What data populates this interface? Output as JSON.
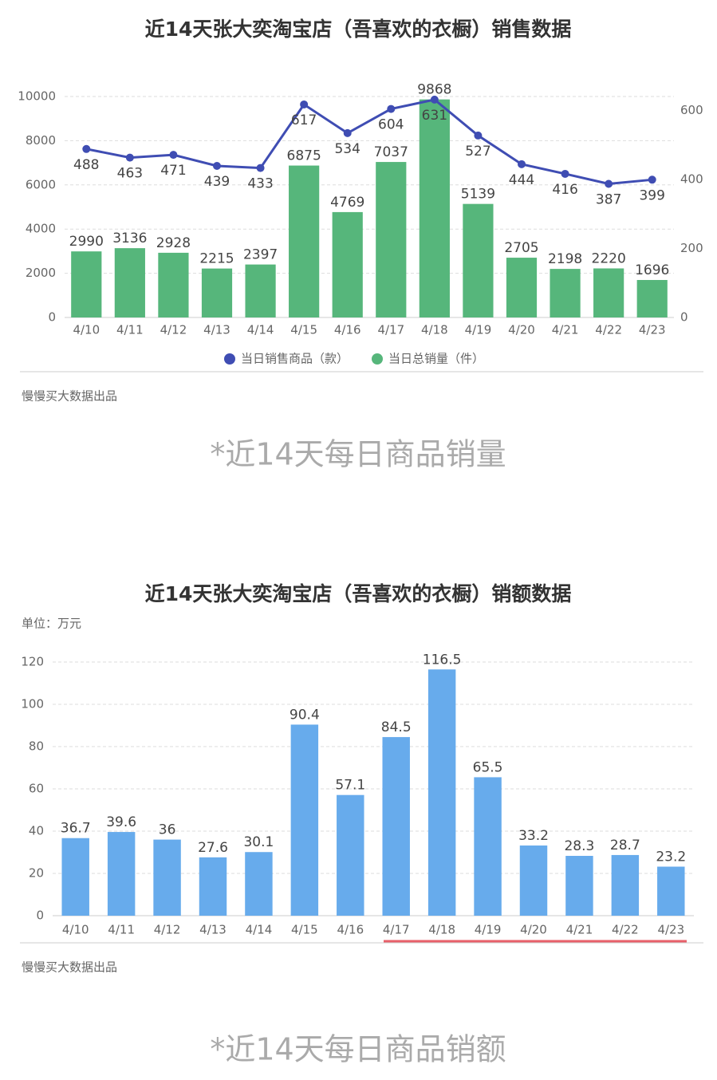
{
  "chart_data": [
    {
      "type": "bar",
      "title": "近14天张大奕淘宝店（吾喜欢的衣橱）销售数据",
      "categories": [
        "4/10",
        "4/11",
        "4/12",
        "4/13",
        "4/14",
        "4/15",
        "4/16",
        "4/17",
        "4/18",
        "4/19",
        "4/20",
        "4/21",
        "4/22",
        "4/23"
      ],
      "series": [
        {
          "name": "当日销售商品（款）",
          "type": "line",
          "axis": "y2",
          "color": "#3f4db3",
          "values": [
            488,
            463,
            471,
            439,
            433,
            617,
            534,
            604,
            631,
            527,
            444,
            416,
            387,
            399
          ]
        },
        {
          "name": "当日总销量（件）",
          "type": "bar",
          "color": "#56b67b",
          "values": [
            2990,
            3136,
            2928,
            2215,
            2397,
            6875,
            4769,
            7037,
            9868,
            5139,
            2705,
            2198,
            2220,
            1696
          ]
        }
      ],
      "ylim": [
        0,
        10000
      ],
      "yticks": [
        0,
        2000,
        4000,
        6000,
        8000,
        10000
      ],
      "y2lim": [
        0,
        640
      ],
      "y2ticks": [
        0,
        200,
        400,
        600
      ],
      "grid": true,
      "legend": "bottom",
      "source": "慢慢买大数据出品",
      "caption": "*近14天每日商品销量"
    },
    {
      "type": "bar",
      "title": "近14天张大奕淘宝店（吾喜欢的衣橱）销额数据",
      "unit_label": "单位：万元",
      "categories": [
        "4/10",
        "4/11",
        "4/12",
        "4/13",
        "4/14",
        "4/15",
        "4/16",
        "4/17",
        "4/18",
        "4/19",
        "4/20",
        "4/21",
        "4/22",
        "4/23"
      ],
      "series": [
        {
          "type": "bar",
          "color": "#67abec",
          "values": [
            36.7,
            39.6,
            36,
            27.6,
            30.1,
            90.4,
            57.1,
            84.5,
            116.5,
            65.5,
            33.2,
            28.3,
            28.7,
            23.2
          ]
        }
      ],
      "ylim": [
        0,
        120
      ],
      "yticks": [
        0,
        20,
        40,
        60,
        80,
        100,
        120
      ],
      "grid": true,
      "source": "慢慢买大数据出品",
      "caption": "*近14天每日商品销额"
    }
  ]
}
